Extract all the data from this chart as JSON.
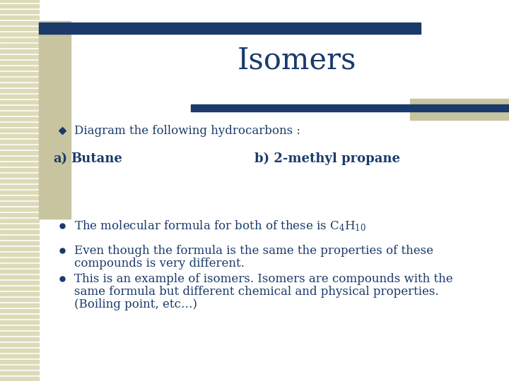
{
  "title": "Isomers",
  "title_color": "#1a3a6b",
  "title_fontsize": 30,
  "bg_color": "#ffffff",
  "left_rect_color": "#c8c4a0",
  "top_bar_color": "#1a3a6b",
  "right_box_color": "#c8c4a0",
  "second_bar_color": "#1a3a6b",
  "bullet_color": "#1a3a6b",
  "text_color": "#1a3a6b",
  "stripe_color": "#dddab8",
  "bullet1": "Diagram the following hydrocarbons :",
  "label_a": "a)",
  "label_a_text": "Butane",
  "label_b": "b) 2-methyl propane",
  "bullet2_prefix": "The molecular formula for both of these is C",
  "bullet2_sub1": "4",
  "bullet2_mid": "H",
  "bullet2_sub2": "10",
  "bullet3_line1": "Even though the formula is the same the properties of these",
  "bullet3_line2": "compounds is very different.",
  "bullet4_line1": "This is an example of isomers. Isomers are compounds with the",
  "bullet4_line2": "same formula but different chemical and physical properties.",
  "bullet4_line3": "(Boiling point, etc…)"
}
